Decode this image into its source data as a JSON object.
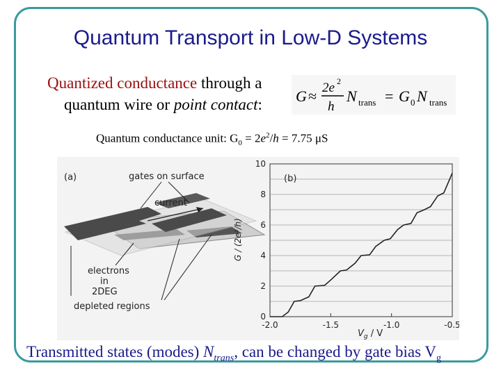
{
  "slide": {
    "title": "Quantum Transport in Low-D Systems",
    "intro_red": "Quantized conductance",
    "intro_rest": " through a",
    "intro_line2_a": "quantum wire or ",
    "intro_line2_b": "point contact",
    "intro_line2_c": ":",
    "unit_prefix": "Quantum conductance unit:  G",
    "unit_sub": "0",
    "unit_mid": " = 2",
    "unit_e": "e",
    "unit_sup": "2",
    "unit_slash": "/",
    "unit_h": "h",
    "unit_value": " = 7.75 μS",
    "bottom_a": "Transmitted states (modes) ",
    "bottom_n": "N",
    "bottom_sub": "trans",
    "bottom_b": ",  can be changed by gate bias V",
    "bottom_g": "g"
  },
  "formula": {
    "G": "G",
    "approx": "≈",
    "num_2e": "2e",
    "num_sup": "2",
    "den_h": "h",
    "N1": "N",
    "trans1": "trans",
    "eq": "=",
    "G0": "G",
    "G0_sub": "0",
    "N2": "N",
    "trans2": "trans"
  },
  "figure": {
    "panel_a": {
      "label": "(a)",
      "gates_label": "gates on surface",
      "current_label": "current",
      "electrons_label_1": "electrons",
      "electrons_label_2": "in",
      "electrons_label_3": "2DEG",
      "depleted_label": "depleted regions"
    },
    "panel_b": {
      "label": "(b)",
      "ylabel": "G / (2e²/h)",
      "xlabel": "V",
      "xlabel_sub": "g",
      "xlabel_unit": " / V",
      "xticks": [
        "-2.0",
        "-1.5",
        "-1.0",
        "-0.5"
      ],
      "yticks": [
        "0",
        "2",
        "4",
        "6",
        "8",
        "10"
      ]
    }
  },
  "chart_data": {
    "type": "line",
    "xlabel": "Vg / V",
    "ylabel": "G / (2e²/h)",
    "xlim": [
      -2.0,
      -0.5
    ],
    "ylim": [
      0,
      10
    ],
    "grid": true,
    "series": [
      {
        "x": [
          -2.0,
          -1.9,
          -1.85,
          -1.8,
          -1.75,
          -1.68,
          -1.63,
          -1.55,
          -1.5,
          -1.42,
          -1.37,
          -1.3,
          -1.25,
          -1.18,
          -1.13,
          -1.06,
          -1.01,
          -0.95,
          -0.9,
          -0.84,
          -0.79,
          -0.73,
          -0.68,
          -0.62,
          -0.57,
          -0.5
        ],
        "y": [
          0,
          0,
          0.3,
          1.0,
          1.05,
          1.3,
          2.0,
          2.05,
          2.4,
          3.0,
          3.05,
          3.5,
          4.0,
          4.05,
          4.6,
          5.0,
          5.1,
          5.7,
          6.0,
          6.1,
          6.8,
          7.0,
          7.2,
          7.9,
          8.1,
          9.4
        ]
      }
    ]
  }
}
